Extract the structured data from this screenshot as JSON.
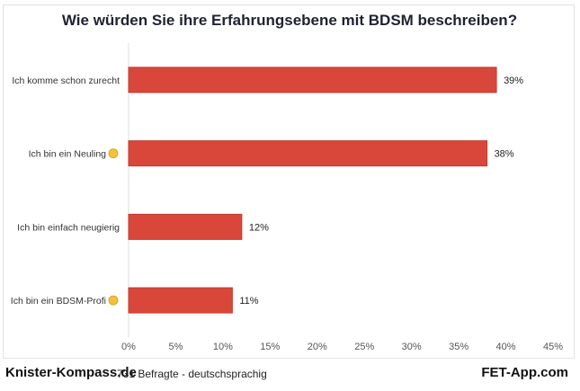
{
  "chart_data": {
    "type": "bar",
    "orientation": "horizontal",
    "title": "Wie würden Sie ihre Erfahrungsebene mit BDSM beschreiben?",
    "categories": [
      "Ich komme schon zurecht",
      "Ich bin ein Neuling",
      "Ich bin einfach neugierig",
      "Ich bin ein BDSM-Profi"
    ],
    "category_icons": [
      "",
      "hatching-chick-emoji-icon",
      "",
      "nerd-face-emoji-icon"
    ],
    "values": [
      39,
      38,
      12,
      11
    ],
    "data_labels": [
      "39%",
      "38%",
      "12%",
      "11%"
    ],
    "xlim": [
      0,
      45
    ],
    "xticks": [
      "0%",
      "5%",
      "10%",
      "15%",
      "20%",
      "25%",
      "30%",
      "35%",
      "40%",
      "45%"
    ],
    "xlabel": "",
    "ylabel": "",
    "grid": false,
    "bar_color": "#d9473b"
  },
  "footer": {
    "brand_left": "Knister-Kompass.de",
    "respondents": "731 Befragte - deutschsprachig",
    "brand_right": "FET-App.com"
  }
}
